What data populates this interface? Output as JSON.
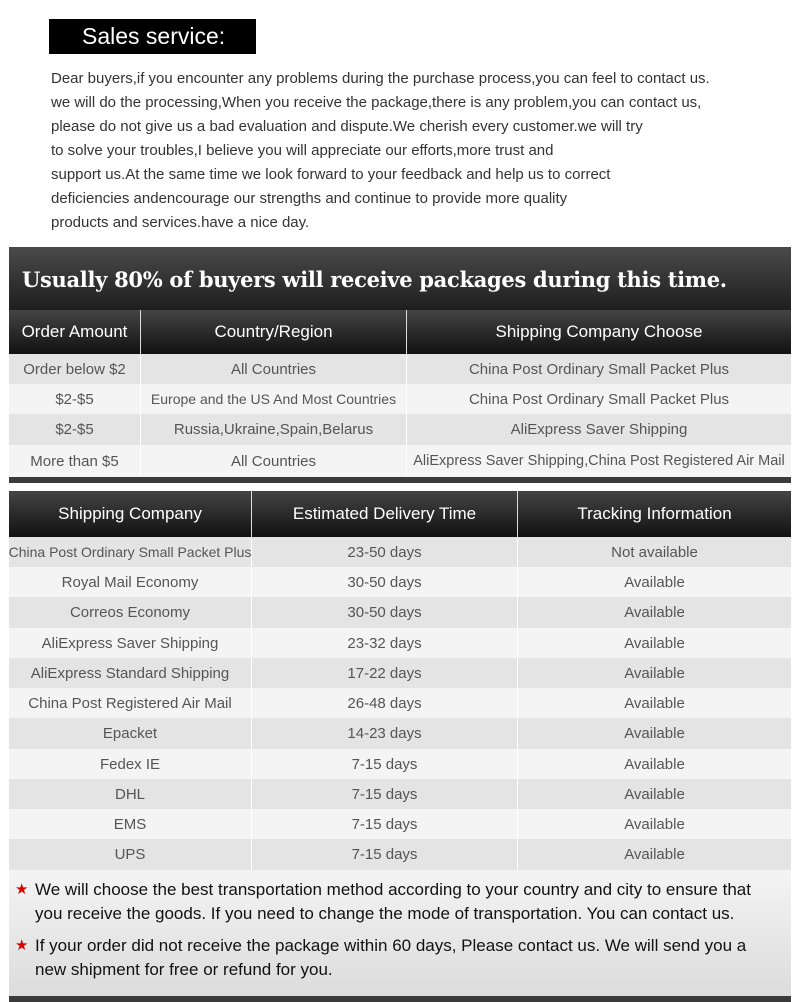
{
  "title": "Sales service:",
  "intro": [
    "Dear buyers,if you encounter any problems during the purchase process,you can feel to contact us.",
    "we will do the processing,When you receive the package,there is any problem,you can contact us,",
    "please do not give us a bad evaluation and dispute.We cherish every customer.we will try",
    "to solve your troubles,I believe you will appreciate our efforts,more trust and",
    "support us.At the same time we look forward to your feedback and help us to correct",
    "deficiencies andencourage our strengths and continue to provide more quality",
    "products and services.have a nice day."
  ],
  "table1": {
    "banner": "Usually 80% of buyers will receive packages during this time.",
    "headers": [
      "Order Amount",
      "Country/Region",
      "Shipping Company Choose"
    ],
    "rows": [
      [
        "Order below $2",
        "All Countries",
        "China Post Ordinary Small Packet Plus"
      ],
      [
        "$2-$5",
        "Europe and the US And Most Countries",
        "China Post Ordinary Small Packet Plus"
      ],
      [
        "$2-$5",
        "Russia,Ukraine,Spain,Belarus",
        "AliExpress Saver Shipping"
      ],
      [
        "More than $5",
        "All Countries",
        "AliExpress Saver Shipping,China Post Registered Air Mail"
      ]
    ]
  },
  "table2": {
    "headers": [
      "Shipping Company",
      "Estimated Delivery Time",
      "Tracking Information"
    ],
    "rows": [
      [
        "China Post Ordinary Small Packet Plus",
        "23-50 days",
        "Not available"
      ],
      [
        "Royal Mail Economy",
        "30-50 days",
        "Available"
      ],
      [
        "Correos Economy",
        "30-50 days",
        "Available"
      ],
      [
        "AliExpress Saver Shipping",
        "23-32 days",
        "Available"
      ],
      [
        "AliExpress Standard Shipping",
        "17-22 days",
        "Available"
      ],
      [
        "China Post Registered Air Mail",
        "26-48 days",
        "Available"
      ],
      [
        "Epacket",
        "14-23 days",
        "Available"
      ],
      [
        "Fedex IE",
        "7-15 days",
        "Available"
      ],
      [
        "DHL",
        "7-15 days",
        "Available"
      ],
      [
        "EMS",
        "7-15 days",
        "Available"
      ],
      [
        "UPS",
        "7-15 days",
        "Available"
      ]
    ]
  },
  "notes": [
    "We will choose the best transportation method according to your country and city to ensure that you receive the goods. If you need to change the mode of transportation. You can contact us.",
    "If your order did not receive the package within 60 days, Please contact us. We will send you a new shipment for free or refund for you."
  ],
  "colors": {
    "star": "#dd0000",
    "header": "#1e1e1e"
  }
}
